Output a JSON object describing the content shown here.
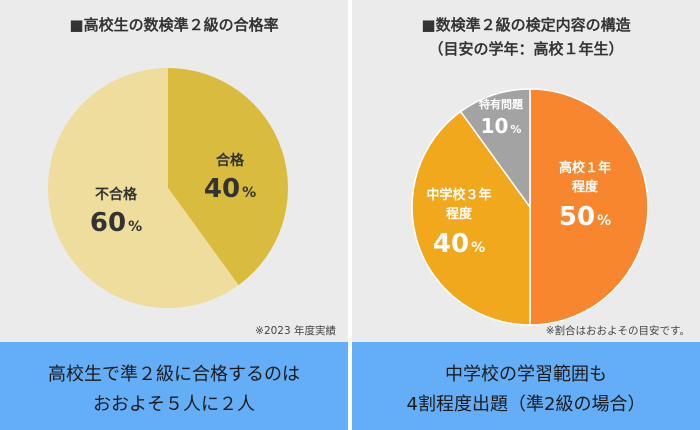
{
  "left": {
    "title": "■高校生の数検準２級の合格率",
    "note": "※2023 年度実績",
    "banner": [
      "高校生で準２級に合格するのは",
      "おおよそ５人に２人"
    ],
    "chart_data": {
      "type": "pie",
      "title": "■高校生の数検準２級の合格率",
      "slices": [
        {
          "label": "合格",
          "value": 40,
          "value_text": "40",
          "unit": "%",
          "color": "#d9bc3e",
          "label_color": "#333333"
        },
        {
          "label": "不合格",
          "value": 60,
          "value_text": "60",
          "unit": "%",
          "color": "#eedd9c",
          "label_color": "#333333"
        }
      ]
    }
  },
  "right": {
    "title": "■数検準２級の検定内容の構造",
    "subtitle": "（目安の学年：高校１年生）",
    "note": "※割合はおおよその目安です。",
    "banner": [
      "中学校の学習範囲も",
      "4割程度出題（準2級の場合）"
    ],
    "chart_data": {
      "type": "pie",
      "title": "■数検準２級の検定内容の構造",
      "subtitle": "（目安の学年：高校１年生）",
      "slices": [
        {
          "label": "高校１年\n程度",
          "value": 50,
          "value_text": "50",
          "unit": "%",
          "color": "#f7862f",
          "label_color": "#ffffff"
        },
        {
          "label": "中学校３年\n程度",
          "value": 40,
          "value_text": "40",
          "unit": "%",
          "color": "#f2a81c",
          "label_color": "#ffffff"
        },
        {
          "label": "特有問題",
          "value": 10,
          "value_text": "10",
          "unit": "%",
          "color": "#a3a3a3",
          "label_color": "#ffffff"
        }
      ]
    }
  }
}
